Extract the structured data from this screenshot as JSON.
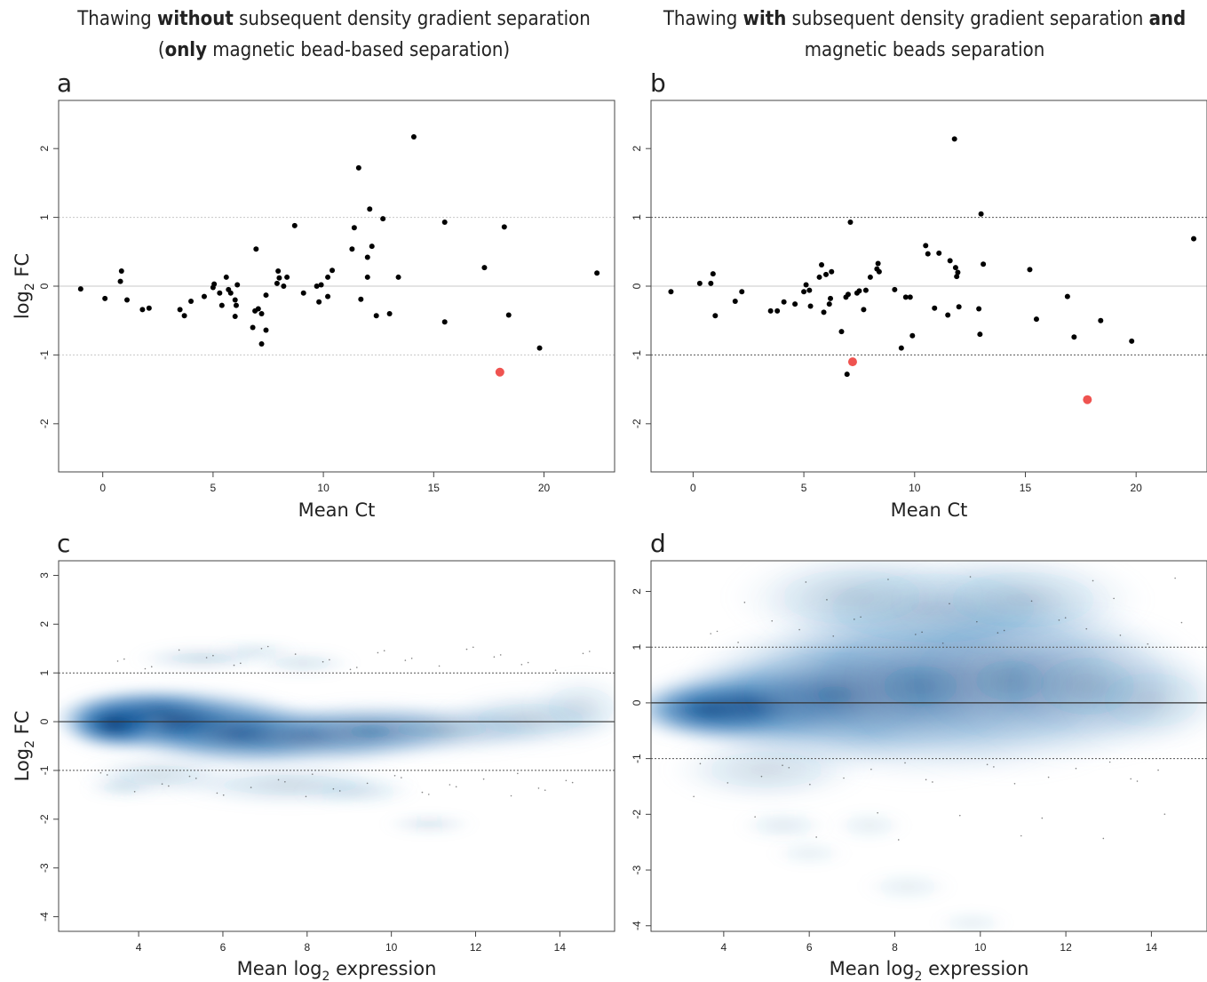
{
  "titles": {
    "left": {
      "pre": "Thawing ",
      "b1": "without",
      "mid": " subsequent density gradient separation",
      "line2_open": "(",
      "b2": "only",
      "line2_rest": " magnetic bead-based separation)"
    },
    "right": {
      "pre": "Thawing ",
      "b1": "with",
      "mid": " subsequent density gradient separation ",
      "b2": "and",
      "line2": "magnetic beads separation"
    }
  },
  "colors": {
    "point": "#000000",
    "highlight": "#ef5350",
    "density_dark": "#08306b",
    "density_light": "#c6dbef"
  },
  "chart_data": [
    {
      "panel": "a",
      "type": "scatter",
      "xlabel": "Mean Ct",
      "ylabel": "log2 FC",
      "xlim": [
        -2,
        23.2
      ],
      "ylim": [
        -2.7,
        2.7
      ],
      "xticks": [
        0,
        5,
        10,
        15,
        20
      ],
      "yticks": [
        -2,
        -1,
        0,
        1,
        2
      ],
      "reference_lines": [
        -1,
        0,
        1
      ],
      "points": [
        [
          -1,
          -0.04
        ],
        [
          0.1,
          -0.18
        ],
        [
          0.8,
          0.07
        ],
        [
          0.85,
          0.22
        ],
        [
          1.1,
          -0.2
        ],
        [
          1.8,
          -0.34
        ],
        [
          2.1,
          -0.32
        ],
        [
          3.5,
          -0.34
        ],
        [
          3.7,
          -0.43
        ],
        [
          4,
          -0.22
        ],
        [
          4.6,
          -0.15
        ],
        [
          5,
          -0.02
        ],
        [
          5.05,
          0.03
        ],
        [
          5.3,
          -0.1
        ],
        [
          5.4,
          -0.28
        ],
        [
          5.6,
          0.13
        ],
        [
          5.7,
          -0.05
        ],
        [
          5.8,
          -0.1
        ],
        [
          6,
          -0.2
        ],
        [
          6,
          -0.44
        ],
        [
          6.05,
          -0.28
        ],
        [
          6.1,
          0.02
        ],
        [
          6.8,
          -0.6
        ],
        [
          6.9,
          -0.36
        ],
        [
          6.95,
          0.54
        ],
        [
          7.05,
          -0.33
        ],
        [
          7.2,
          -0.84
        ],
        [
          7.2,
          -0.4
        ],
        [
          7.4,
          -0.64
        ],
        [
          7.4,
          -0.13
        ],
        [
          7.9,
          0.04
        ],
        [
          7.95,
          0.22
        ],
        [
          8,
          0.12
        ],
        [
          8.2,
          0
        ],
        [
          8.35,
          0.13
        ],
        [
          8.7,
          0.88
        ],
        [
          9.1,
          -0.1
        ],
        [
          9.7,
          0
        ],
        [
          9.8,
          -0.23
        ],
        [
          9.9,
          0.02
        ],
        [
          10.2,
          0.13
        ],
        [
          10.2,
          -0.15
        ],
        [
          10.4,
          0.23
        ],
        [
          11.3,
          0.54
        ],
        [
          11.4,
          0.85
        ],
        [
          11.6,
          1.72
        ],
        [
          11.7,
          -0.19
        ],
        [
          12,
          0.42
        ],
        [
          12,
          0.13
        ],
        [
          12.1,
          1.12
        ],
        [
          12.2,
          0.58
        ],
        [
          12.4,
          -0.43
        ],
        [
          12.7,
          0.98
        ],
        [
          13,
          -0.4
        ],
        [
          13.4,
          0.13
        ],
        [
          14.1,
          2.17
        ],
        [
          15.5,
          0.93
        ],
        [
          15.5,
          -0.52
        ],
        [
          17.3,
          0.27
        ],
        [
          18.2,
          0.86
        ],
        [
          18.4,
          -0.42
        ],
        [
          19.8,
          -0.9
        ],
        [
          22.4,
          0.19
        ]
      ],
      "highlight": [
        [
          18,
          -1.25
        ]
      ]
    },
    {
      "panel": "b",
      "type": "scatter",
      "xlabel": "Mean Ct",
      "ylabel": "",
      "xlim": [
        -1.9,
        23.2
      ],
      "ylim": [
        -2.7,
        2.7
      ],
      "xticks": [
        0,
        5,
        10,
        15,
        20
      ],
      "yticks": [
        -2,
        -1,
        0,
        1,
        2
      ],
      "reference_lines": [
        -1,
        0,
        1
      ],
      "points": [
        [
          -1,
          -0.08
        ],
        [
          0.3,
          0.04
        ],
        [
          0.8,
          0.04
        ],
        [
          0.9,
          0.18
        ],
        [
          1,
          -0.43
        ],
        [
          1.9,
          -0.22
        ],
        [
          2.2,
          -0.08
        ],
        [
          3.5,
          -0.36
        ],
        [
          3.8,
          -0.36
        ],
        [
          4.1,
          -0.23
        ],
        [
          4.6,
          -0.26
        ],
        [
          5,
          -0.08
        ],
        [
          5.1,
          0.02
        ],
        [
          5.25,
          -0.06
        ],
        [
          5.3,
          -0.29
        ],
        [
          5.7,
          0.13
        ],
        [
          5.8,
          0.31
        ],
        [
          5.9,
          -0.38
        ],
        [
          6,
          0.17
        ],
        [
          6.15,
          -0.26
        ],
        [
          6.2,
          -0.18
        ],
        [
          6.25,
          0.21
        ],
        [
          6.7,
          -0.66
        ],
        [
          6.9,
          -0.16
        ],
        [
          6.95,
          -1.28
        ],
        [
          7,
          -0.12
        ],
        [
          7.1,
          0.93
        ],
        [
          7.4,
          -0.1
        ],
        [
          7.5,
          -0.07
        ],
        [
          7.7,
          -0.34
        ],
        [
          7.8,
          -0.06
        ],
        [
          8,
          0.13
        ],
        [
          8.3,
          0.25
        ],
        [
          8.35,
          0.33
        ],
        [
          8.4,
          0.21
        ],
        [
          9.1,
          -0.05
        ],
        [
          9.4,
          -0.9
        ],
        [
          9.6,
          -0.16
        ],
        [
          9.8,
          -0.16
        ],
        [
          9.9,
          -0.72
        ],
        [
          10.5,
          0.59
        ],
        [
          10.6,
          0.47
        ],
        [
          10.9,
          -0.32
        ],
        [
          11.1,
          0.48
        ],
        [
          11.5,
          -0.42
        ],
        [
          11.6,
          0.37
        ],
        [
          11.8,
          2.14
        ],
        [
          11.85,
          0.27
        ],
        [
          11.9,
          0.14
        ],
        [
          11.95,
          0.2
        ],
        [
          12,
          -0.3
        ],
        [
          12.9,
          -0.33
        ],
        [
          12.95,
          -0.7
        ],
        [
          13,
          1.05
        ],
        [
          13.1,
          0.32
        ],
        [
          15.2,
          0.24
        ],
        [
          15.5,
          -0.48
        ],
        [
          16.9,
          -0.15
        ],
        [
          17.2,
          -0.74
        ],
        [
          18.4,
          -0.5
        ],
        [
          19.8,
          -0.8
        ],
        [
          22.6,
          0.69
        ]
      ],
      "highlight": [
        [
          7.2,
          -1.1
        ],
        [
          17.8,
          -1.65
        ]
      ]
    },
    {
      "panel": "c",
      "type": "heatmap",
      "xlabel": "Mean log2 expression",
      "ylabel": "Log2 FC",
      "xlim": [
        2.1,
        15.3
      ],
      "ylim": [
        -4.3,
        3.3
      ],
      "xticks": [
        4,
        6,
        8,
        10,
        12,
        14
      ],
      "yticks": [
        -4,
        -3,
        -2,
        -1,
        0,
        1,
        2,
        3
      ],
      "reference_lines": [
        -1,
        0,
        1
      ],
      "density": [
        [
          4.1,
          0.1,
          1.2,
          0.33,
          1.0
        ],
        [
          5.0,
          0.0,
          1.6,
          0.4,
          0.85
        ],
        [
          3.4,
          -0.05,
          0.7,
          0.3,
          0.9
        ],
        [
          6.4,
          -0.25,
          1.4,
          0.4,
          0.7
        ],
        [
          8.0,
          -0.3,
          1.6,
          0.35,
          0.55
        ],
        [
          9.5,
          -0.2,
          1.4,
          0.35,
          0.45
        ],
        [
          11.2,
          -0.15,
          1.6,
          0.3,
          0.32
        ],
        [
          13.3,
          0.05,
          1.2,
          0.35,
          0.22
        ],
        [
          14.5,
          0.3,
          0.7,
          0.4,
          0.14
        ],
        [
          5.5,
          1.3,
          0.9,
          0.15,
          0.2
        ],
        [
          6.8,
          1.45,
          0.6,
          0.1,
          0.15
        ],
        [
          7.9,
          1.2,
          0.7,
          0.15,
          0.15
        ],
        [
          4.5,
          -1.1,
          1.0,
          0.25,
          0.18
        ],
        [
          7.6,
          -1.3,
          1.6,
          0.25,
          0.2
        ],
        [
          9.2,
          -1.45,
          0.8,
          0.15,
          0.12
        ],
        [
          10.9,
          -2.1,
          0.6,
          0.1,
          0.18
        ],
        [
          3.6,
          -1.35,
          0.5,
          0.12,
          0.15
        ]
      ]
    },
    {
      "panel": "d",
      "type": "heatmap",
      "xlabel": "Mean log2 expression",
      "ylabel": "",
      "xlim": [
        2.3,
        15.3
      ],
      "ylim": [
        -4.1,
        2.55
      ],
      "xticks": [
        4,
        6,
        8,
        10,
        12,
        14
      ],
      "yticks": [
        -4,
        -3,
        -2,
        -1,
        0,
        1,
        2
      ],
      "reference_lines": [
        -1,
        0,
        1
      ],
      "density": [
        [
          3.7,
          -0.12,
          1.1,
          0.3,
          1.0
        ],
        [
          4.7,
          -0.05,
          1.5,
          0.45,
          0.7
        ],
        [
          6.6,
          0.15,
          2.0,
          0.75,
          0.55
        ],
        [
          8.6,
          0.3,
          2.2,
          0.95,
          0.45
        ],
        [
          10.7,
          0.4,
          2.0,
          0.95,
          0.38
        ],
        [
          12.5,
          0.3,
          1.6,
          0.75,
          0.28
        ],
        [
          14.0,
          0.05,
          1.1,
          0.5,
          0.18
        ],
        [
          8.9,
          1.7,
          2.2,
          0.6,
          0.22
        ],
        [
          11.0,
          1.85,
          1.6,
          0.5,
          0.2
        ],
        [
          7.0,
          1.9,
          1.6,
          0.5,
          0.18
        ],
        [
          5.0,
          -1.2,
          1.3,
          0.35,
          0.18
        ],
        [
          5.4,
          -2.2,
          0.6,
          0.15,
          0.12
        ],
        [
          7.4,
          -2.2,
          0.5,
          0.15,
          0.1
        ],
        [
          6.0,
          -2.7,
          0.5,
          0.12,
          0.1
        ],
        [
          8.3,
          -3.3,
          0.6,
          0.15,
          0.1
        ],
        [
          9.8,
          -3.95,
          0.5,
          0.12,
          0.1
        ]
      ]
    }
  ]
}
